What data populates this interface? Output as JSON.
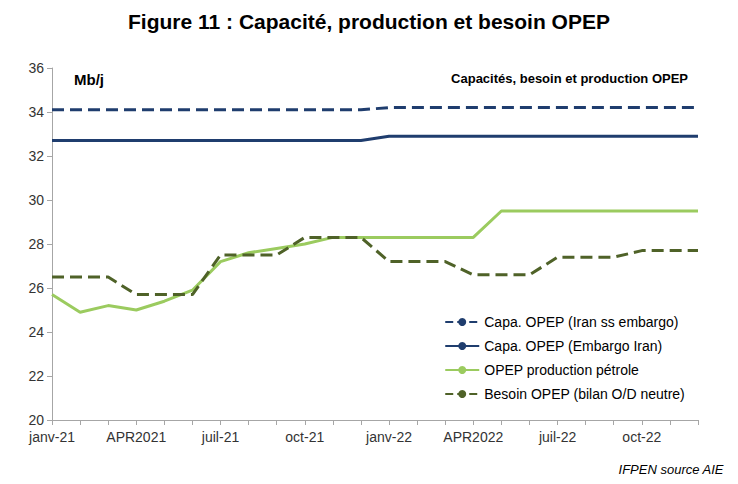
{
  "chart_data": {
    "type": "line",
    "title": "Figure 11 : Capacité, production et besoin OPEP",
    "subtitle": "Capacités, besoin et production OPEP",
    "ylabel": "Mb/j",
    "source": "IFPEN source AIE",
    "categories": [
      "janv-21",
      null,
      null,
      "APR2021",
      null,
      null,
      "juil-21",
      null,
      null,
      "oct-21",
      null,
      null,
      "janv-22",
      null,
      null,
      "APR2022",
      null,
      null,
      "juil-22",
      null,
      null,
      "oct-22",
      null,
      null
    ],
    "series": [
      {
        "name": "Capa. OPEP (Iran ss embargo)",
        "color": "#1f3d6e",
        "line_style": "dashed",
        "values": [
          34.1,
          34.1,
          34.1,
          34.1,
          34.1,
          34.1,
          34.1,
          34.1,
          34.1,
          34.1,
          34.1,
          34.1,
          34.2,
          34.2,
          34.2,
          34.2,
          34.2,
          34.2,
          34.2,
          34.2,
          34.2,
          34.2,
          34.2,
          34.2
        ]
      },
      {
        "name": "Capa. OPEP (Embargo Iran)",
        "color": "#1f3d6e",
        "line_style": "solid",
        "values": [
          32.7,
          32.7,
          32.7,
          32.7,
          32.7,
          32.7,
          32.7,
          32.7,
          32.7,
          32.7,
          32.7,
          32.7,
          32.9,
          32.9,
          32.9,
          32.9,
          32.9,
          32.9,
          32.9,
          32.9,
          32.9,
          32.9,
          32.9,
          32.9
        ]
      },
      {
        "name": "OPEP production pétrole",
        "color": "#9bcb5f",
        "line_style": "solid",
        "values": [
          25.7,
          24.9,
          25.2,
          25.0,
          25.4,
          25.9,
          27.2,
          27.6,
          27.8,
          28.0,
          28.3,
          28.3,
          28.3,
          28.3,
          28.3,
          28.3,
          29.5,
          29.5,
          29.5,
          29.5,
          29.5,
          29.5,
          29.5,
          29.5
        ]
      },
      {
        "name": "Besoin OPEP (bilan O/D neutre)",
        "color": "#4f6228",
        "line_style": "dashed",
        "values": [
          26.5,
          26.5,
          26.5,
          25.7,
          25.7,
          25.7,
          27.5,
          27.5,
          27.5,
          28.3,
          28.3,
          28.3,
          27.2,
          27.2,
          27.2,
          26.6,
          26.6,
          26.6,
          27.4,
          27.4,
          27.4,
          27.7,
          27.7,
          27.7
        ]
      }
    ],
    "ylim": [
      20,
      36
    ],
    "yticks": [
      20,
      22,
      24,
      26,
      28,
      30,
      32,
      34,
      36
    ],
    "grid": false,
    "legend": "bottom-right",
    "marker": "none"
  }
}
